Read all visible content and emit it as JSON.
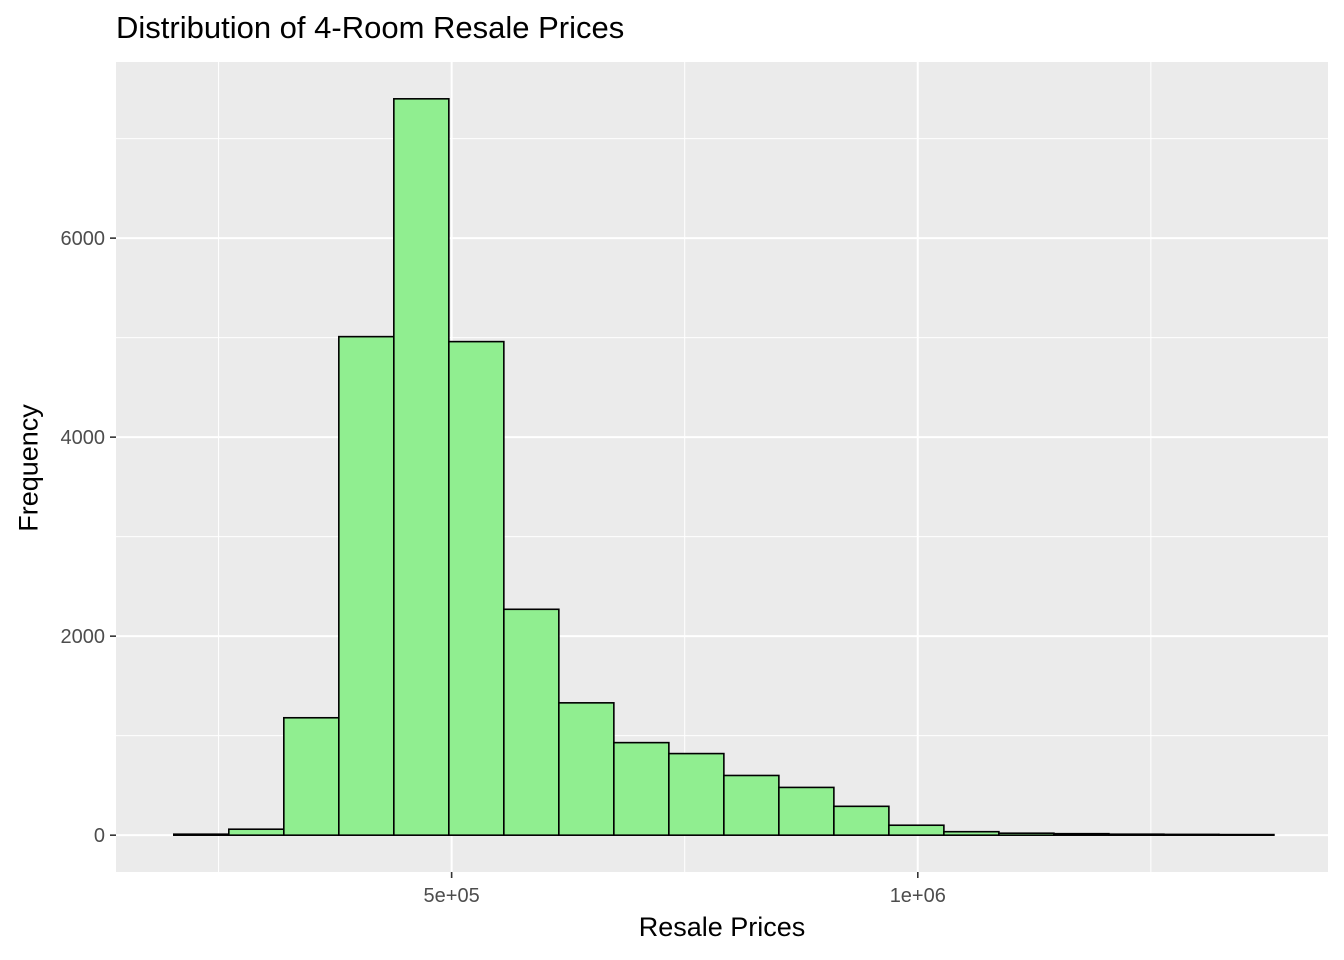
{
  "chart_data": {
    "type": "bar",
    "title": "Distribution of 4-Room Resale Prices",
    "xlabel": "Resale Prices",
    "ylabel": "Frequency",
    "colors": {
      "panel": "#EBEBEB",
      "grid": "#FFFFFF",
      "bar_fill": "#90EE90",
      "bar_stroke": "#000000",
      "tick_text": "#4D4D4D"
    },
    "grid": true,
    "x_ticks": [
      {
        "value": 500000,
        "label": "5e+05"
      },
      {
        "value": 1000000,
        "label": "1e+06"
      }
    ],
    "x_minor_ticks": [
      250000,
      750000,
      1250000
    ],
    "y_ticks": [
      {
        "value": 0,
        "label": "0"
      },
      {
        "value": 2000,
        "label": "2000"
      },
      {
        "value": 4000,
        "label": "4000"
      },
      {
        "value": 6000,
        "label": "6000"
      }
    ],
    "y_minor_ticks": [
      1000,
      3000,
      5000,
      7000
    ],
    "xlim": [
      140000,
      1440000
    ],
    "ylim": [
      -370,
      7770
    ],
    "bin_width": 59000,
    "bins": [
      {
        "x_start": 202000,
        "count": 10
      },
      {
        "x_start": 261000,
        "count": 60
      },
      {
        "x_start": 320000,
        "count": 1180
      },
      {
        "x_start": 379000,
        "count": 5010
      },
      {
        "x_start": 438000,
        "count": 7400
      },
      {
        "x_start": 497000,
        "count": 4960
      },
      {
        "x_start": 556000,
        "count": 2270
      },
      {
        "x_start": 615000,
        "count": 1330
      },
      {
        "x_start": 674000,
        "count": 930
      },
      {
        "x_start": 733000,
        "count": 820
      },
      {
        "x_start": 792000,
        "count": 600
      },
      {
        "x_start": 851000,
        "count": 480
      },
      {
        "x_start": 910000,
        "count": 290
      },
      {
        "x_start": 969000,
        "count": 100
      },
      {
        "x_start": 1028000,
        "count": 35
      },
      {
        "x_start": 1087000,
        "count": 20
      },
      {
        "x_start": 1146000,
        "count": 15
      },
      {
        "x_start": 1205000,
        "count": 10
      },
      {
        "x_start": 1264000,
        "count": 8
      },
      {
        "x_start": 1323000,
        "count": 6
      }
    ]
  }
}
